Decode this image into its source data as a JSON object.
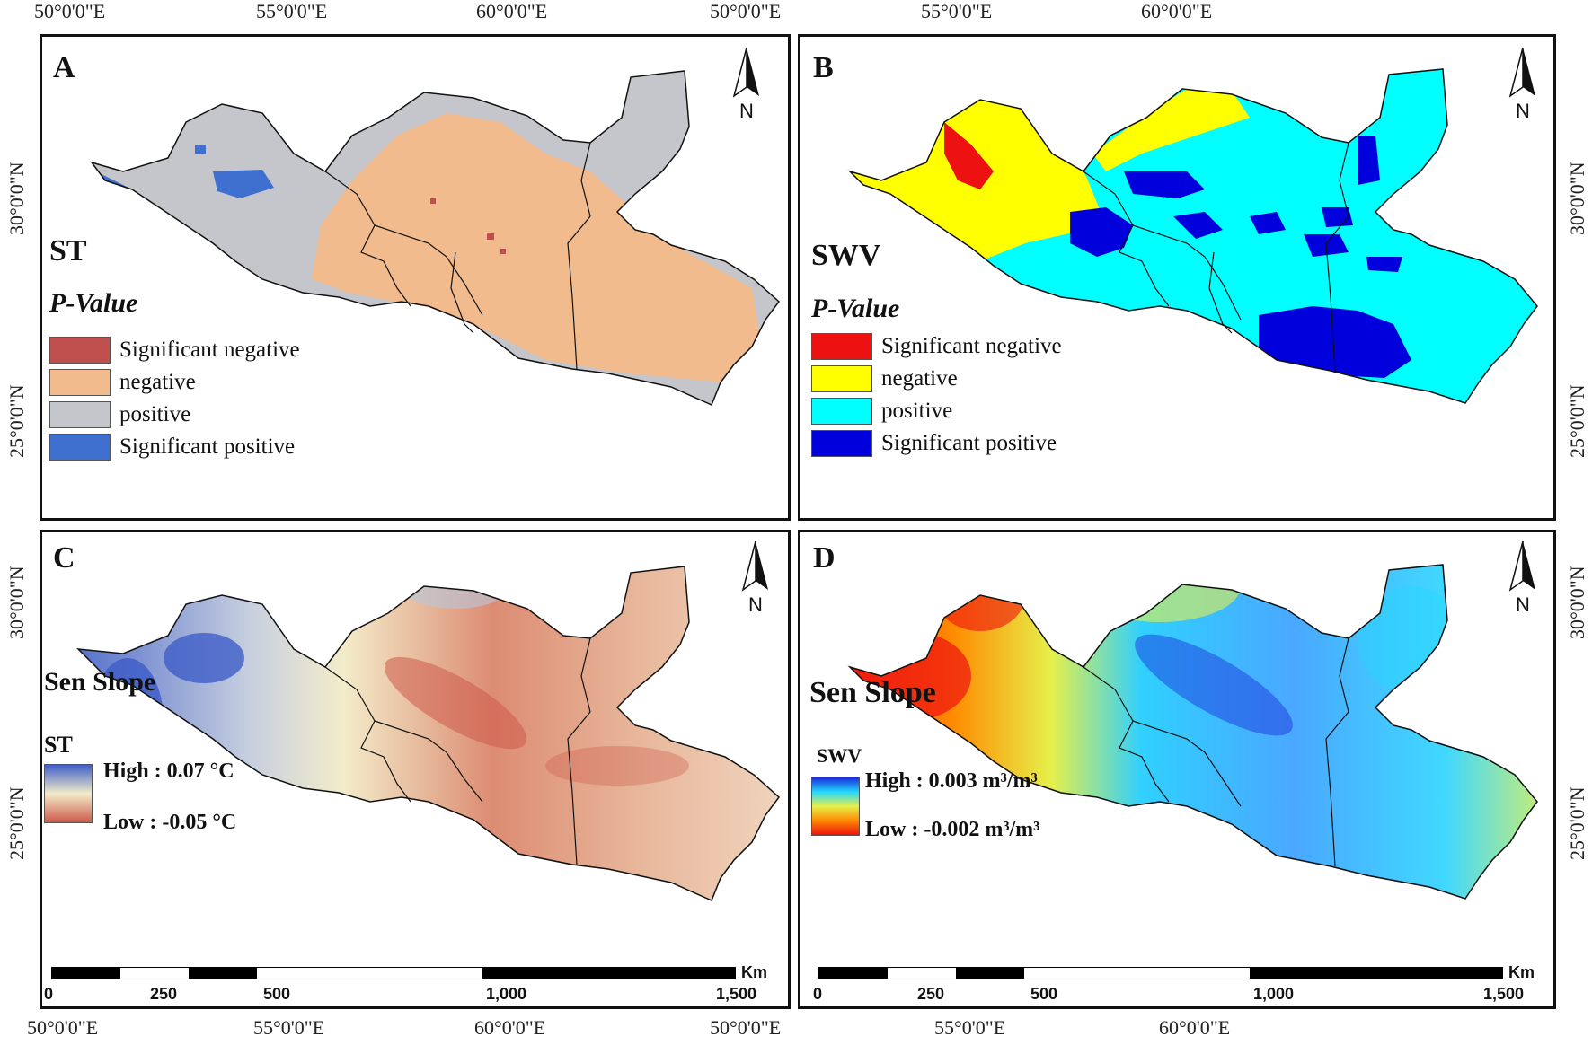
{
  "coords": {
    "top": [
      "50°0'0\"E",
      "55°0'0\"E",
      "60°0'0\"E"
    ],
    "bottom": [
      "50°0'0\"E",
      "55°0'0\"E",
      "60°0'0\"E"
    ],
    "left": [
      "30°0'0\"N",
      "25°0'0\"N"
    ],
    "right": [
      "30°0'0\"N",
      "25°0'0\"N"
    ]
  },
  "panels": {
    "A": {
      "letter": "A",
      "variable": "ST",
      "subtitle": "P-Value",
      "legend": [
        "Significant negative",
        "negative",
        "positive",
        "Significant positive"
      ],
      "colors": [
        "#c0504d",
        "#f2bb8e",
        "#c4c6cb",
        "#3f6fcf"
      ]
    },
    "B": {
      "letter": "B",
      "variable": "SWV",
      "subtitle": "P-Value",
      "legend": [
        "Significant negative",
        "negative",
        "positive",
        "Significant positive"
      ],
      "colors": [
        "#ee1111",
        "#ffff00",
        "#00ffff",
        "#0000dd"
      ]
    },
    "C": {
      "letter": "C",
      "variable": "Sen Slope",
      "ramp_title": "ST",
      "high": "High : 0.07 °C",
      "low": "Low : -0.05 °C",
      "ramp_colors": [
        "#3f5ec8",
        "#f3ecca",
        "#cd5a4a"
      ]
    },
    "D": {
      "letter": "D",
      "variable": "Sen Slope",
      "ramp_title": "SWV",
      "high": "High : 0.003 m³/m³",
      "low": "Low : -0.002 m³/m³",
      "ramp_colors": [
        "#1a2ad8",
        "#22d8ff",
        "#e6f04a",
        "#ff8a00",
        "#ee1111"
      ]
    }
  },
  "north_label": "N",
  "scalebar": {
    "unit": "Km",
    "ticks": [
      "0",
      "250",
      "500",
      "1,000",
      "1,500"
    ]
  }
}
